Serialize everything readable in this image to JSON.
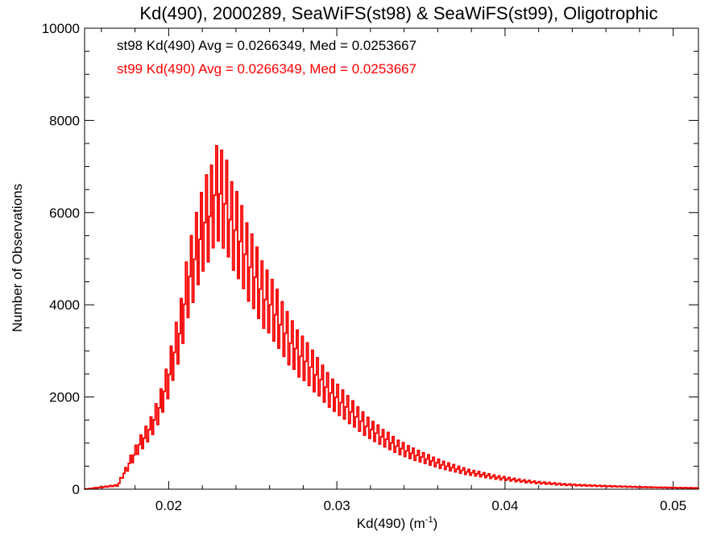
{
  "chart_data": {
    "type": "histogram",
    "title": "Kd(490), 2000289, SeaWiFS(st98) & SeaWiFS(st99), Oligotrophic",
    "xlabel": "Kd(490) (m",
    "xlabel_sup": "-1",
    "xlabel_end": ")",
    "ylabel": "Number of Observations",
    "xlim": [
      0.015,
      0.0515
    ],
    "ylim": [
      0,
      10000
    ],
    "x_ticks": [
      0.02,
      0.03,
      0.04,
      0.05
    ],
    "x_tick_labels": [
      "0.02",
      "0.03",
      "0.04",
      "0.05"
    ],
    "y_ticks": [
      0,
      2000,
      4000,
      6000,
      8000,
      10000
    ],
    "y_tick_labels": [
      "0",
      "2000",
      "4000",
      "6000",
      "8000",
      "10000"
    ],
    "grid": false,
    "bin_width": 0.0001,
    "annotations": [
      {
        "text": "st98 Kd(490) Avg = 0.0266349, Med = 0.0253667",
        "color": "#000000"
      },
      {
        "text": "st99 Kd(490) Avg = 0.0266349, Med = 0.0253667",
        "color": "#ff0000"
      }
    ],
    "series": [
      {
        "name": "st98",
        "color": "#000000"
      },
      {
        "name": "st99",
        "color": "#ff0000"
      }
    ],
    "x": [
      0.015,
      0.017,
      0.0172,
      0.0175,
      0.0177,
      0.018,
      0.0182,
      0.0185,
      0.0187,
      0.019,
      0.0192,
      0.0195,
      0.0197,
      0.02,
      0.0202,
      0.0205,
      0.0207,
      0.021,
      0.0212,
      0.0215,
      0.0217,
      0.022,
      0.0222,
      0.0225,
      0.0227,
      0.023,
      0.0232,
      0.0235,
      0.0237,
      0.024,
      0.0242,
      0.0245,
      0.0247,
      0.025,
      0.0252,
      0.0255,
      0.0257,
      0.026,
      0.0262,
      0.0265,
      0.0267,
      0.027,
      0.0272,
      0.0275,
      0.0277,
      0.028,
      0.0282,
      0.0285,
      0.0287,
      0.029,
      0.0292,
      0.0295,
      0.0297,
      0.03,
      0.0302,
      0.0305,
      0.0307,
      0.031,
      0.0312,
      0.0315,
      0.0317,
      0.032,
      0.0322,
      0.0325,
      0.0327,
      0.033,
      0.0332,
      0.0335,
      0.0337,
      0.034,
      0.0342,
      0.0345,
      0.0347,
      0.035,
      0.0352,
      0.0355,
      0.0357,
      0.036,
      0.0362,
      0.0365,
      0.0367,
      0.037,
      0.0372,
      0.0375,
      0.0377,
      0.038,
      0.0382,
      0.0385,
      0.0387,
      0.039,
      0.0392,
      0.0395,
      0.0397,
      0.04,
      0.0402,
      0.0405,
      0.0407,
      0.041,
      0.0412,
      0.0415,
      0.0417,
      0.042,
      0.0425,
      0.043,
      0.0435,
      0.044,
      0.0445,
      0.045,
      0.0455,
      0.046,
      0.0465,
      0.047,
      0.0475,
      0.048,
      0.0485,
      0.049,
      0.0495,
      0.05,
      0.0505,
      0.051,
      0.0515
    ],
    "y": [
      0,
      100,
      300,
      500,
      700,
      900,
      1100,
      1250,
      1400,
      1600,
      1800,
      2100,
      2400,
      2800,
      3200,
      3700,
      4000,
      4800,
      5300,
      5700,
      6100,
      6500,
      6800,
      6900,
      7400,
      7500,
      7300,
      7100,
      6700,
      6500,
      6300,
      6000,
      5700,
      5500,
      5300,
      5000,
      4800,
      4700,
      4500,
      4300,
      4100,
      3900,
      3700,
      3600,
      3400,
      3300,
      3200,
      3050,
      2900,
      2800,
      2650,
      2500,
      2400,
      2300,
      2200,
      2100,
      2000,
      1900,
      1800,
      1700,
      1600,
      1520,
      1450,
      1380,
      1300,
      1250,
      1180,
      1100,
      1050,
      1000,
      950,
      900,
      860,
      820,
      780,
      740,
      700,
      660,
      620,
      590,
      560,
      530,
      500,
      470,
      440,
      420,
      400,
      380,
      360,
      340,
      320,
      300,
      285,
      270,
      255,
      240,
      225,
      210,
      200,
      190,
      180,
      165,
      150,
      135,
      120,
      110,
      100,
      92,
      85,
      78,
      72,
      66,
      60,
      55,
      50,
      46,
      42,
      38,
      35,
      32,
      30
    ]
  }
}
